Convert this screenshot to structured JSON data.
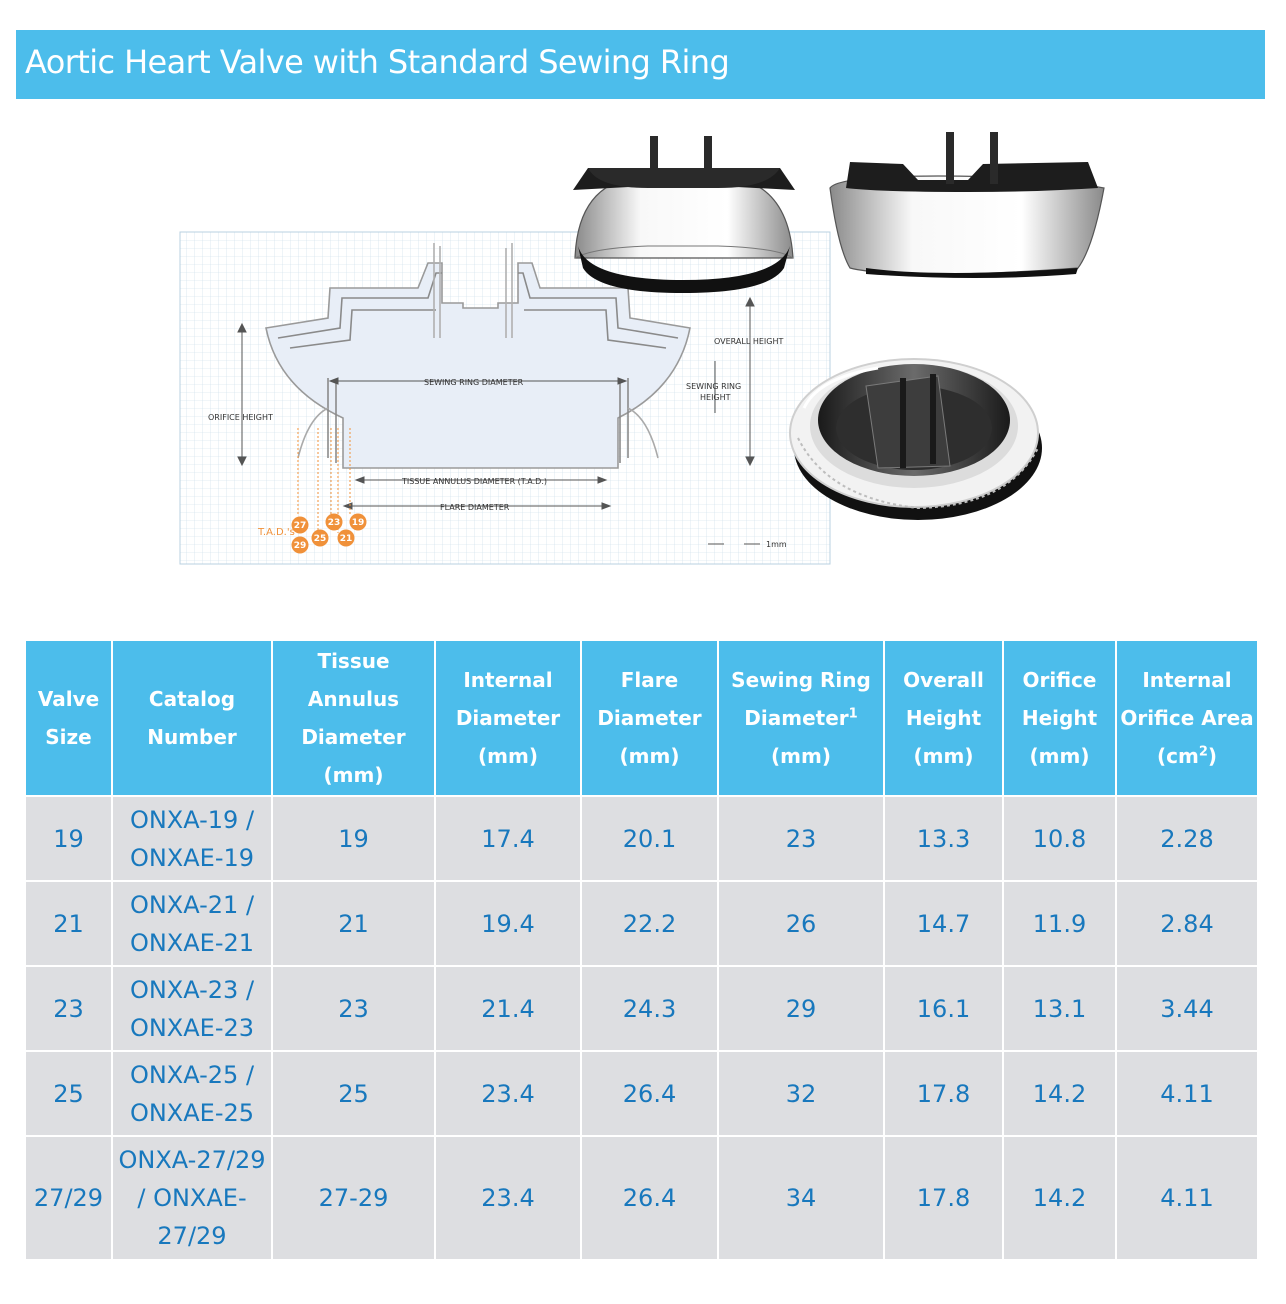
{
  "title": "Aortic Heart Valve with Standard Sewing Ring",
  "diagram": {
    "labels": {
      "overall_height": "OVERALL HEIGHT",
      "sewing_ring_height_1": "SEWING RING",
      "sewing_ring_height_2": "HEIGHT",
      "orifice_height": "ORIFICE HEIGHT",
      "sewing_ring_diameter": "SEWING RING DIAMETER",
      "tad": "TISSUE ANNULUS DIAMETER (T.A.D.)",
      "flare_diameter": "FLARE DIAMETER",
      "tads_key": "T.A.D.'s",
      "scale": "1mm"
    },
    "tad_sizes": [
      "27",
      "23",
      "19",
      "29",
      "25",
      "21"
    ]
  },
  "table": {
    "headers": {
      "valve_size": [
        "Valve",
        "Size"
      ],
      "catalog": [
        "Catalog",
        "Number"
      ],
      "tad": [
        "Tissue",
        "Annulus",
        "Diameter",
        "(mm)"
      ],
      "internal_diameter": [
        "Internal",
        "Diameter",
        "(mm)"
      ],
      "flare": [
        "Flare",
        "Diameter",
        "(mm)"
      ],
      "sewing_ring": [
        "Sewing Ring",
        "Diameter",
        "1",
        "(mm)"
      ],
      "overall_height": [
        "Overall",
        "Height",
        "(mm)"
      ],
      "orifice_height": [
        "Orifice",
        "Height",
        "(mm)"
      ],
      "orifice_area": [
        "Internal",
        "Orifice Area",
        "(cm",
        "2",
        ")"
      ]
    },
    "rows": [
      {
        "size": "19",
        "catalog": [
          "ONXA-19 /",
          "ONXAE-19"
        ],
        "tad": "19",
        "internal": "17.4",
        "flare": "20.1",
        "sewing": "23",
        "overall": "13.3",
        "orifice": "10.8",
        "area": "2.28"
      },
      {
        "size": "21",
        "catalog": [
          "ONXA-21 /",
          "ONXAE-21"
        ],
        "tad": "21",
        "internal": "19.4",
        "flare": "22.2",
        "sewing": "26",
        "overall": "14.7",
        "orifice": "11.9",
        "area": "2.84"
      },
      {
        "size": "23",
        "catalog": [
          "ONXA-23 /",
          "ONXAE-23"
        ],
        "tad": "23",
        "internal": "21.4",
        "flare": "24.3",
        "sewing": "29",
        "overall": "16.1",
        "orifice": "13.1",
        "area": "3.44"
      },
      {
        "size": "25",
        "catalog": [
          "ONXA-25 /",
          "ONXAE-25"
        ],
        "tad": "25",
        "internal": "23.4",
        "flare": "26.4",
        "sewing": "32",
        "overall": "17.8",
        "orifice": "14.2",
        "area": "4.11"
      },
      {
        "size": "27/29",
        "catalog": [
          "ONXA-27/29",
          "/ ONXAE-",
          "27/29"
        ],
        "tad": "27-29",
        "internal": "23.4",
        "flare": "26.4",
        "sewing": "34",
        "overall": "17.8",
        "orifice": "14.2",
        "area": "4.11"
      }
    ]
  }
}
